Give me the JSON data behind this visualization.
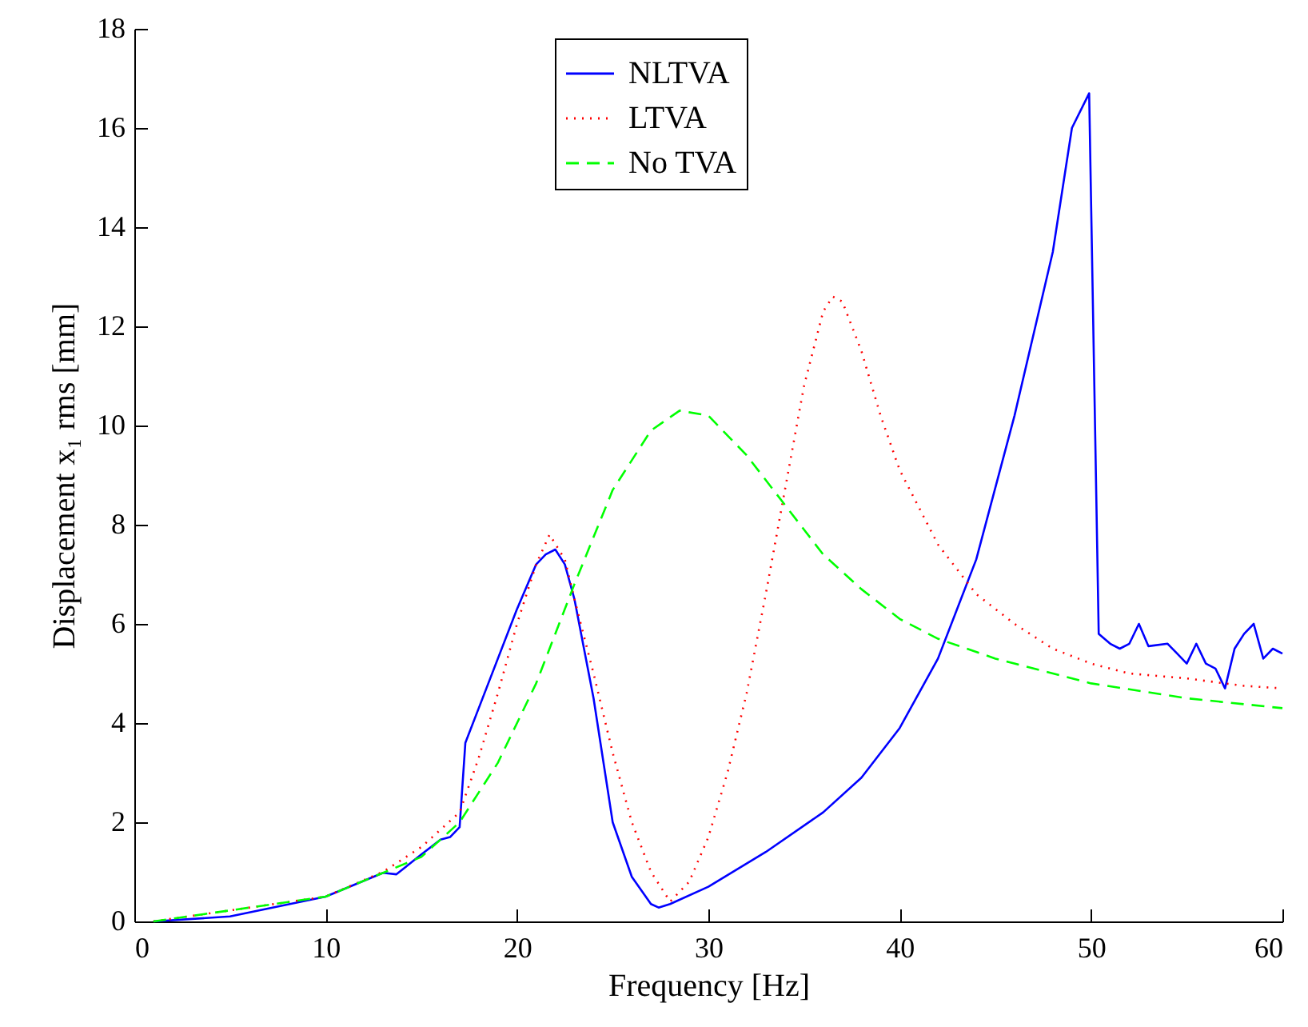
{
  "chart_data": {
    "type": "line",
    "xlabel": "Frequency [Hz]",
    "ylabel": "Displacement x₁ rms [mm]",
    "xlim": [
      0,
      60
    ],
    "xticks": [
      0,
      10,
      20,
      30,
      40,
      50,
      60
    ],
    "ylim": [
      0,
      18
    ],
    "yticks": [
      0,
      2,
      4,
      6,
      8,
      10,
      12,
      14,
      16,
      18
    ],
    "grid": false,
    "legend": "top",
    "series": [
      {
        "name": "NLTVA",
        "color": "#0000ff",
        "line_style": "solid",
        "x": [
          1,
          5,
          10,
          13,
          13.7,
          15,
          16,
          16.5,
          17,
          17.3,
          18,
          20,
          21,
          21.5,
          22,
          22.5,
          23,
          24,
          25,
          26,
          27,
          27.4,
          28,
          30,
          33,
          36,
          38,
          40,
          42,
          44,
          46,
          48,
          49,
          49.9,
          50.4,
          51,
          51.5,
          52,
          52.5,
          53,
          54,
          54.5,
          55,
          55.5,
          56,
          56.5,
          57,
          57.5,
          58,
          58.5,
          59,
          59.5,
          60
        ],
        "values": [
          0,
          0.1,
          0.5,
          0.98,
          0.95,
          1.35,
          1.65,
          1.7,
          1.9,
          3.6,
          4.3,
          6.3,
          7.2,
          7.4,
          7.5,
          7.2,
          6.5,
          4.5,
          2.0,
          0.9,
          0.35,
          0.28,
          0.35,
          0.7,
          1.4,
          2.2,
          2.9,
          3.9,
          5.3,
          7.3,
          10.2,
          13.5,
          16.0,
          16.7,
          5.8,
          5.6,
          5.5,
          5.6,
          6.0,
          5.55,
          5.6,
          5.4,
          5.2,
          5.6,
          5.2,
          5.1,
          4.7,
          5.5,
          5.8,
          6.0,
          5.3,
          5.5,
          5.4
        ]
      },
      {
        "name": "LTVA",
        "color": "#ff0000",
        "line_style": "dotted",
        "x": [
          1,
          10,
          13,
          15,
          17,
          18,
          19,
          20,
          21,
          21.7,
          22.5,
          23,
          24,
          25,
          26,
          27,
          28,
          29,
          30,
          31,
          32,
          33,
          34,
          35,
          36,
          36.5,
          37,
          38,
          39,
          40,
          42,
          44,
          46,
          48,
          50,
          52,
          55,
          58,
          60
        ],
        "values": [
          0,
          0.5,
          1.0,
          1.5,
          2.2,
          3.3,
          4.6,
          6.0,
          7.2,
          7.8,
          7.3,
          6.5,
          5.0,
          3.4,
          2.0,
          1.0,
          0.4,
          0.8,
          1.7,
          3.0,
          4.6,
          6.6,
          8.7,
          10.8,
          12.3,
          12.6,
          12.5,
          11.5,
          10.2,
          9.1,
          7.6,
          6.6,
          6.0,
          5.5,
          5.2,
          5.0,
          4.9,
          4.75,
          4.7
        ]
      },
      {
        "name": "No TVA",
        "color": "#00ff00",
        "line_style": "dashed",
        "x": [
          1,
          10,
          15,
          17,
          19,
          21,
          23,
          25,
          27,
          28.5,
          30,
          32,
          34,
          36,
          38,
          40,
          42,
          45,
          50,
          55,
          60
        ],
        "values": [
          0,
          0.5,
          1.3,
          2.0,
          3.2,
          4.8,
          6.8,
          8.7,
          9.9,
          10.3,
          10.2,
          9.4,
          8.4,
          7.4,
          6.7,
          6.1,
          5.7,
          5.3,
          4.8,
          4.5,
          4.3
        ]
      }
    ]
  }
}
